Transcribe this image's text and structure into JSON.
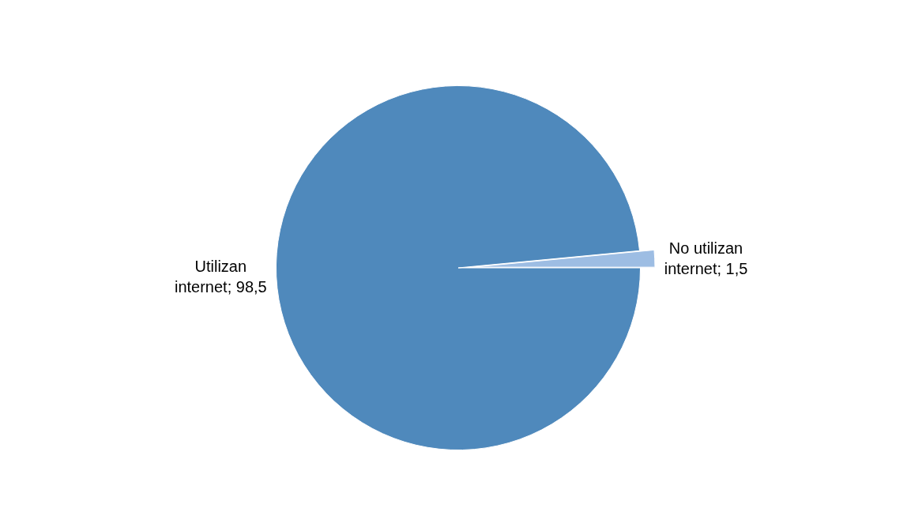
{
  "chart_data": {
    "type": "pie",
    "categories": [
      "Utilizan internet",
      "No utilizan internet"
    ],
    "values": [
      98.5,
      1.5
    ],
    "value_labels": [
      "98,5",
      "1,5"
    ],
    "colors": [
      "#4f89bc",
      "#9dbde3"
    ],
    "legend": false
  }
}
